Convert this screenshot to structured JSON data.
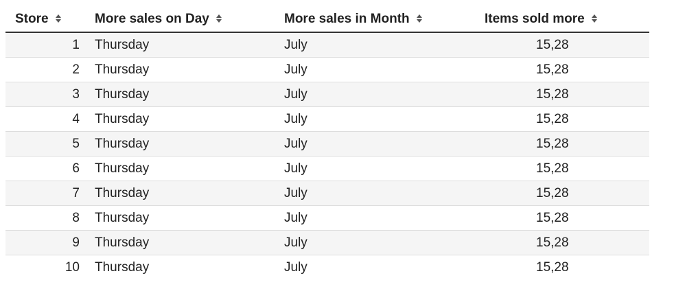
{
  "table": {
    "columns": [
      {
        "label": "Store",
        "sort_icon": "sort-both-icon"
      },
      {
        "label": "More sales on Day",
        "sort_icon": "sort-both-icon"
      },
      {
        "label": "More sales in Month",
        "sort_icon": "sort-both-icon"
      },
      {
        "label": "Items sold more",
        "sort_icon": "sort-both-icon"
      }
    ],
    "rows": [
      {
        "store": "1",
        "day": "Thursday",
        "month": "July",
        "items": "15,28"
      },
      {
        "store": "2",
        "day": "Thursday",
        "month": "July",
        "items": "15,28"
      },
      {
        "store": "3",
        "day": "Thursday",
        "month": "July",
        "items": "15,28"
      },
      {
        "store": "4",
        "day": "Thursday",
        "month": "July",
        "items": "15,28"
      },
      {
        "store": "5",
        "day": "Thursday",
        "month": "July",
        "items": "15,28"
      },
      {
        "store": "6",
        "day": "Thursday",
        "month": "July",
        "items": "15,28"
      },
      {
        "store": "7",
        "day": "Thursday",
        "month": "July",
        "items": "15,28"
      },
      {
        "store": "8",
        "day": "Thursday",
        "month": "July",
        "items": "15,28"
      },
      {
        "store": "9",
        "day": "Thursday",
        "month": "July",
        "items": "15,28"
      },
      {
        "store": "10",
        "day": "Thursday",
        "month": "July",
        "items": "15,28"
      }
    ]
  },
  "colors": {
    "stripe": "#f5f5f5",
    "header_border": "#333333",
    "row_border": "#dddddd",
    "text": "#222222"
  }
}
